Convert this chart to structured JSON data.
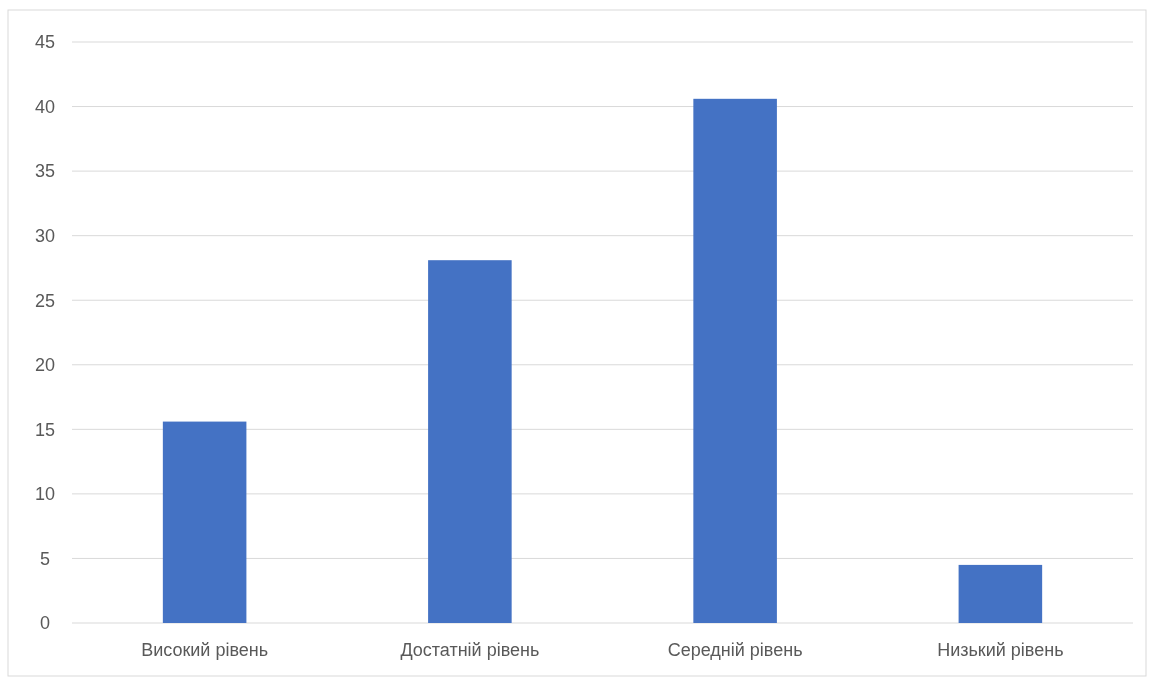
{
  "chart_data": {
    "type": "bar",
    "categories": [
      "Високий рівень",
      "Достатній рівень",
      "Середній рівень",
      "Низький рівень"
    ],
    "values": [
      15.6,
      28.1,
      40.6,
      4.5
    ],
    "color": "#4472c4",
    "ylim": [
      0,
      45
    ],
    "yticks": [
      0,
      5,
      10,
      15,
      20,
      25,
      30,
      35,
      40,
      45
    ],
    "grid": "y"
  }
}
